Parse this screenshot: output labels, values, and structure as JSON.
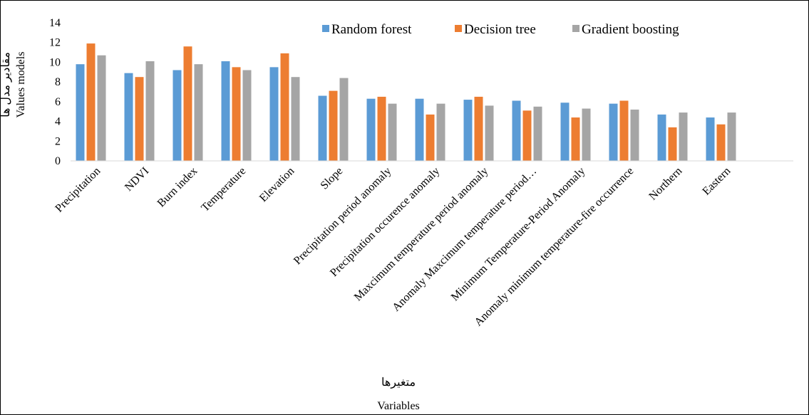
{
  "chart_data": {
    "type": "bar",
    "categories": [
      "Precipitation",
      "NDVI",
      "Burn index",
      "Temperature",
      "Elevation",
      "Slope",
      "Precipitation period anomaly",
      "Precipitation occurence anomaly",
      "Maxcimum temperature period anomaly",
      "Anomaly Maxcimum temperature period…",
      "Minimum Temperature-Period Anomaly",
      "Anomaly minimum temperature-fire occurrence",
      "Northern",
      "Eastern"
    ],
    "series": [
      {
        "name": "Random forest",
        "color": "#5b9bd5",
        "values": [
          9.8,
          8.9,
          9.2,
          10.1,
          9.5,
          6.6,
          6.3,
          6.3,
          6.2,
          6.1,
          5.9,
          5.8,
          4.7,
          4.4
        ]
      },
      {
        "name": "Decision tree",
        "color": "#ed7d31",
        "values": [
          11.9,
          8.5,
          11.6,
          9.5,
          10.9,
          7.1,
          6.5,
          4.7,
          6.5,
          5.1,
          4.4,
          6.1,
          3.4,
          3.7
        ]
      },
      {
        "name": "Gradient boosting",
        "color": "#a5a5a5",
        "values": [
          10.7,
          10.1,
          9.8,
          9.2,
          8.5,
          8.4,
          5.8,
          5.8,
          5.6,
          5.5,
          5.3,
          5.2,
          4.9,
          4.9
        ]
      }
    ],
    "ylim": [
      0,
      14
    ],
    "yticks": [
      0,
      2,
      4,
      6,
      8,
      10,
      12,
      14
    ],
    "ylabel_persian": "مقادیر مدل ها",
    "ylabel": "Values models",
    "xlabel_persian": "متغیرها",
    "xlabel": "Variables",
    "legend_position": "top-right",
    "grid": false
  }
}
